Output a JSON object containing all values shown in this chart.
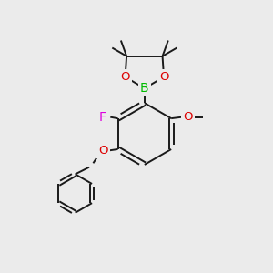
{
  "bg_color": "#ebebeb",
  "bond_color": "#1a1a1a",
  "atom_colors": {
    "B": "#00bb00",
    "O": "#dd0000",
    "F": "#dd00dd",
    "C": "#1a1a1a"
  },
  "lw": 1.4,
  "figsize": [
    3.0,
    3.0
  ],
  "dpi": 100
}
